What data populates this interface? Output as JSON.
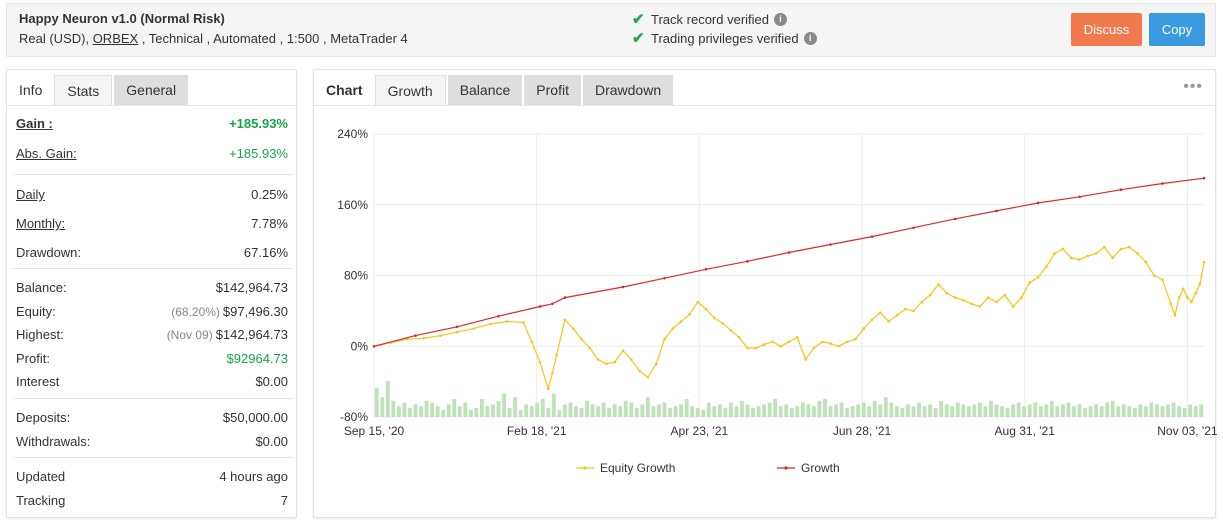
{
  "header": {
    "title": "Happy Neuron v1.0 (Normal Risk)",
    "sub_prefix": "Real (USD), ",
    "broker": "ORBEX",
    "sub_suffix": " , Technical , Automated , 1:500 , MetaTrader 4",
    "verifications": [
      "Track record verified",
      "Trading privileges verified"
    ],
    "discuss_label": "Discuss",
    "copy_label": "Copy",
    "colors": {
      "discuss": "#f07a4d",
      "copy": "#3a9ae0",
      "check": "#2da44e"
    }
  },
  "left_tabs": [
    "Info",
    "Stats",
    "General"
  ],
  "stats": {
    "gain": {
      "label": "Gain :",
      "value": "+185.93%"
    },
    "abs_gain": {
      "label": "Abs. Gain:",
      "value": "+185.93%"
    },
    "daily": {
      "label": "Daily",
      "value": "0.25%"
    },
    "monthly": {
      "label": "Monthly:",
      "value": "7.78%"
    },
    "drawdown": {
      "label": "Drawdown:",
      "value": "67.16%"
    },
    "balance": {
      "label": "Balance:",
      "value": "$142,964.73"
    },
    "equity": {
      "label": "Equity:",
      "note": "(68.20%)",
      "value": "$97,496.30"
    },
    "highest": {
      "label": "Highest:",
      "note": "(Nov 09)",
      "value": "$142,964.73"
    },
    "profit": {
      "label": "Profit:",
      "value": "$92964.73"
    },
    "interest": {
      "label": "Interest",
      "value": "$0.00"
    },
    "deposits": {
      "label": "Deposits:",
      "value": "$50,000.00"
    },
    "withdrawals": {
      "label": "Withdrawals:",
      "value": "$0.00"
    },
    "updated": {
      "label": "Updated",
      "value": "4 hours ago"
    },
    "tracking": {
      "label": "Tracking",
      "value": "7"
    }
  },
  "chart_tabs": [
    "Chart",
    "Growth",
    "Balance",
    "Profit",
    "Drawdown"
  ],
  "menu_icon": "more-dots-icon",
  "chart_data": {
    "type": "line",
    "ylim": [
      -80,
      240
    ],
    "y_ticks": [
      240,
      160,
      80,
      0,
      -80
    ],
    "y_tick_labels": [
      "240%",
      "160%",
      "80%",
      "0%",
      "-80%"
    ],
    "x_tick_labels": [
      "Sep 15, '20",
      "Feb 18, '21",
      "Apr 23, '21",
      "Jun 28, '21",
      "Aug 31, '21",
      "Nov 03, '21"
    ],
    "x_tick_index": [
      0,
      0.196,
      0.392,
      0.588,
      0.784,
      0.98
    ],
    "series": [
      {
        "name": "Equity Growth",
        "color": "#f5c518",
        "points": [
          [
            0,
            0
          ],
          [
            0.02,
            4
          ],
          [
            0.04,
            8
          ],
          [
            0.06,
            9
          ],
          [
            0.08,
            12
          ],
          [
            0.1,
            16
          ],
          [
            0.12,
            20
          ],
          [
            0.14,
            25
          ],
          [
            0.16,
            28
          ],
          [
            0.18,
            27
          ],
          [
            0.19,
            5
          ],
          [
            0.2,
            -18
          ],
          [
            0.21,
            -48
          ],
          [
            0.215,
            -30
          ],
          [
            0.22,
            -10
          ],
          [
            0.23,
            30
          ],
          [
            0.24,
            20
          ],
          [
            0.25,
            8
          ],
          [
            0.26,
            -2
          ],
          [
            0.27,
            -15
          ],
          [
            0.28,
            -20
          ],
          [
            0.29,
            -18
          ],
          [
            0.3,
            -5
          ],
          [
            0.31,
            -15
          ],
          [
            0.32,
            -28
          ],
          [
            0.33,
            -35
          ],
          [
            0.34,
            -20
          ],
          [
            0.35,
            8
          ],
          [
            0.36,
            20
          ],
          [
            0.37,
            28
          ],
          [
            0.38,
            36
          ],
          [
            0.39,
            50
          ],
          [
            0.4,
            42
          ],
          [
            0.41,
            32
          ],
          [
            0.42,
            26
          ],
          [
            0.43,
            18
          ],
          [
            0.44,
            10
          ],
          [
            0.45,
            -2
          ],
          [
            0.46,
            -2
          ],
          [
            0.47,
            2
          ],
          [
            0.48,
            5
          ],
          [
            0.49,
            0
          ],
          [
            0.5,
            5
          ],
          [
            0.51,
            10
          ],
          [
            0.52,
            -15
          ],
          [
            0.53,
            -2
          ],
          [
            0.54,
            5
          ],
          [
            0.55,
            3
          ],
          [
            0.56,
            0
          ],
          [
            0.57,
            5
          ],
          [
            0.58,
            8
          ],
          [
            0.59,
            20
          ],
          [
            0.6,
            30
          ],
          [
            0.61,
            38
          ],
          [
            0.62,
            28
          ],
          [
            0.63,
            35
          ],
          [
            0.64,
            42
          ],
          [
            0.65,
            40
          ],
          [
            0.66,
            50
          ],
          [
            0.67,
            58
          ],
          [
            0.68,
            70
          ],
          [
            0.69,
            60
          ],
          [
            0.7,
            55
          ],
          [
            0.71,
            52
          ],
          [
            0.72,
            48
          ],
          [
            0.73,
            45
          ],
          [
            0.74,
            55
          ],
          [
            0.75,
            50
          ],
          [
            0.76,
            58
          ],
          [
            0.77,
            45
          ],
          [
            0.78,
            55
          ],
          [
            0.79,
            72
          ],
          [
            0.8,
            78
          ],
          [
            0.81,
            90
          ],
          [
            0.82,
            105
          ],
          [
            0.83,
            110
          ],
          [
            0.84,
            100
          ],
          [
            0.85,
            98
          ],
          [
            0.86,
            102
          ],
          [
            0.87,
            105
          ],
          [
            0.88,
            112
          ],
          [
            0.89,
            100
          ],
          [
            0.9,
            110
          ],
          [
            0.91,
            112
          ],
          [
            0.92,
            105
          ],
          [
            0.93,
            95
          ],
          [
            0.94,
            80
          ],
          [
            0.95,
            75
          ],
          [
            0.96,
            48
          ],
          [
            0.965,
            35
          ],
          [
            0.97,
            55
          ],
          [
            0.975,
            65
          ],
          [
            0.98,
            55
          ],
          [
            0.985,
            50
          ],
          [
            0.99,
            60
          ],
          [
            0.995,
            70
          ],
          [
            1.0,
            95
          ]
        ]
      },
      {
        "name": "Growth",
        "color": "#d92b2b",
        "points": [
          [
            0,
            0
          ],
          [
            0.05,
            12
          ],
          [
            0.1,
            22
          ],
          [
            0.15,
            34
          ],
          [
            0.2,
            45
          ],
          [
            0.215,
            48
          ],
          [
            0.23,
            55
          ],
          [
            0.3,
            67
          ],
          [
            0.35,
            77
          ],
          [
            0.4,
            87
          ],
          [
            0.45,
            96
          ],
          [
            0.5,
            106
          ],
          [
            0.55,
            115
          ],
          [
            0.6,
            124
          ],
          [
            0.65,
            134
          ],
          [
            0.7,
            144
          ],
          [
            0.75,
            153
          ],
          [
            0.8,
            162
          ],
          [
            0.85,
            169
          ],
          [
            0.9,
            177
          ],
          [
            0.95,
            184
          ],
          [
            1.0,
            190
          ]
        ]
      }
    ],
    "volume_bars": [
      32,
      22,
      40,
      18,
      12,
      16,
      10,
      14,
      12,
      18,
      16,
      12,
      8,
      14,
      20,
      12,
      16,
      8,
      10,
      20,
      12,
      14,
      18,
      26,
      10,
      22,
      8,
      14,
      12,
      16,
      20,
      10,
      26,
      8,
      14,
      16,
      12,
      10,
      18,
      14,
      12,
      16,
      10,
      14,
      12,
      18,
      16,
      10,
      14,
      22,
      12,
      14,
      16,
      10,
      12,
      14,
      20,
      12,
      10,
      8,
      16,
      12,
      14,
      10,
      16,
      12,
      18,
      14,
      10,
      12,
      14,
      16,
      20,
      12,
      14,
      10,
      12,
      16,
      14,
      12,
      18,
      20,
      12,
      14,
      16,
      10,
      12,
      14,
      16,
      12,
      18,
      14,
      22,
      16,
      12,
      10,
      14,
      12,
      16,
      12,
      14,
      10,
      18,
      14,
      12,
      16,
      14,
      12,
      14,
      16,
      12,
      18,
      14,
      12,
      10,
      14,
      16,
      12,
      14,
      16,
      12,
      14,
      18,
      12,
      14,
      16,
      12,
      14,
      10,
      12,
      14,
      12,
      16,
      18,
      12,
      14,
      12,
      10,
      14,
      12,
      16,
      14,
      12,
      14,
      16,
      12,
      10,
      14,
      12,
      14
    ],
    "legend": [
      "Equity Growth",
      "Growth"
    ]
  }
}
